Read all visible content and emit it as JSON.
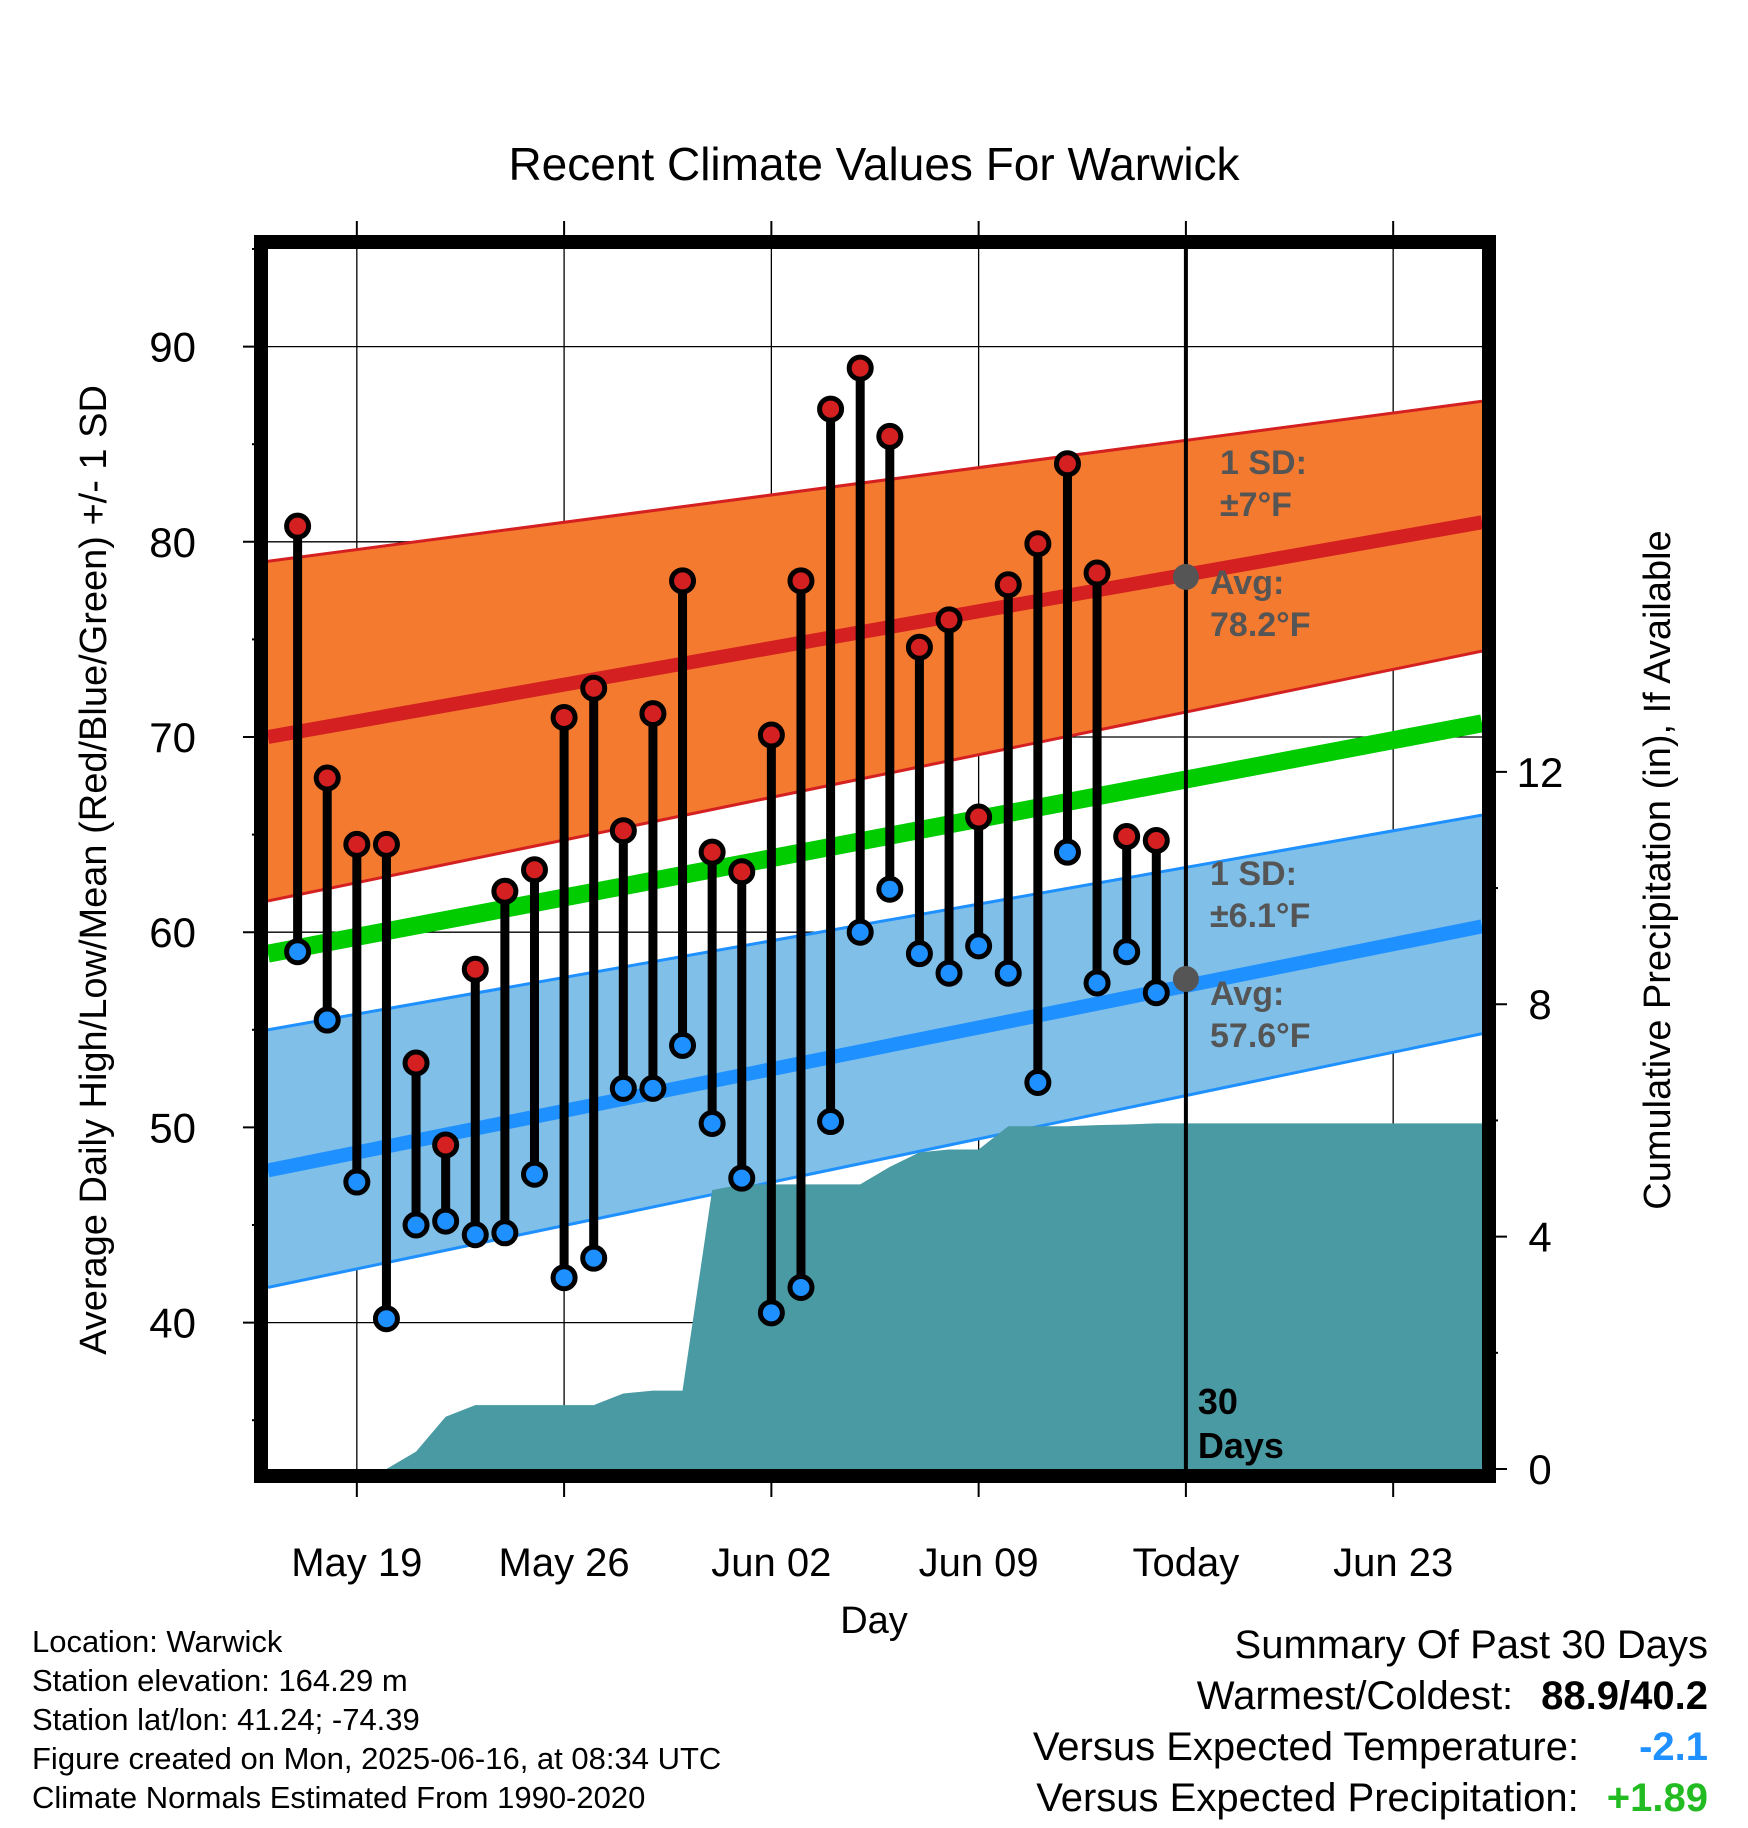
{
  "chart_data": {
    "type": "line",
    "title": "Recent Climate Values For Warwick",
    "xlabel": "Day",
    "ylabel": "Average Daily High/Low/Mean (Red/Blue/Green) +/- 1 SD",
    "y2label": "Cumulative Precipitation (in), If Available",
    "ylim": [
      32.5,
      95
    ],
    "y2lim": [
      0,
      21
    ],
    "xlim": [
      "2025-05-16",
      "2025-06-26"
    ],
    "yticks": [
      40,
      50,
      60,
      70,
      80,
      90
    ],
    "y2ticks": [
      0,
      4,
      8,
      12
    ],
    "xticks": [
      {
        "date": "2025-05-19",
        "label": "May 19"
      },
      {
        "date": "2025-05-26",
        "label": "May 26"
      },
      {
        "date": "2025-06-02",
        "label": "Jun 02"
      },
      {
        "date": "2025-06-09",
        "label": "Jun 09"
      },
      {
        "date": "2025-06-16",
        "label": "Today"
      },
      {
        "date": "2025-06-23",
        "label": "Jun 23"
      }
    ],
    "grid": true,
    "colors": {
      "high_band": "#f47a30",
      "high_line": "#d42020",
      "low_band": "#7fbfe8",
      "low_line": "#1e90ff",
      "mean_line": "#00cc00",
      "precip": "#4a9aa3",
      "high_dot": "#d42020",
      "low_dot": "#1e90ff",
      "annotation": "#555555"
    },
    "normals": {
      "dates": [
        "2025-05-16",
        "2025-06-26"
      ],
      "high_avg": [
        70.0,
        81.0
      ],
      "high_upper": [
        79.0,
        87.2
      ],
      "high_lower": [
        61.6,
        74.4
      ],
      "low_avg": [
        47.8,
        60.3
      ],
      "low_upper": [
        55.0,
        66.0
      ],
      "low_lower": [
        41.8,
        54.8
      ],
      "mean_avg": [
        58.9,
        70.7
      ]
    },
    "annotations": {
      "high_sd": [
        "1 SD:",
        "±7°F"
      ],
      "high_avg": [
        "Avg:",
        "78.2°F"
      ],
      "low_sd": [
        "1 SD:",
        "±6.1°F"
      ],
      "low_avg": [
        "Avg:",
        "57.6°F"
      ],
      "today_marker_high": 78.2,
      "today_marker_low": 57.6,
      "period": [
        "30",
        "Days"
      ]
    },
    "today": "2025-06-16",
    "series": [
      {
        "name": "High",
        "values": [
          80.8,
          67.9,
          64.5,
          64.5,
          53.3,
          49.1,
          58.1,
          62.1,
          63.2,
          71.0,
          72.5,
          65.2,
          71.2,
          78.0,
          64.1,
          63.1,
          70.1,
          78.0,
          86.8,
          88.9,
          85.4,
          74.6,
          76.0,
          65.9,
          77.8,
          79.9,
          84.0,
          78.4,
          64.9,
          64.7
        ]
      },
      {
        "name": "Low",
        "values": [
          59.0,
          55.5,
          47.2,
          40.2,
          45.0,
          45.2,
          44.5,
          44.6,
          47.6,
          42.3,
          43.3,
          52.0,
          52.0,
          54.2,
          50.2,
          47.4,
          40.5,
          41.8,
          50.3,
          60.0,
          62.2,
          58.9,
          57.9,
          59.3,
          57.9,
          52.3,
          64.1,
          57.4,
          59.0,
          56.9
        ]
      }
    ],
    "dates": [
      "2025-05-17",
      "2025-05-18",
      "2025-05-19",
      "2025-05-20",
      "2025-05-21",
      "2025-05-22",
      "2025-05-23",
      "2025-05-24",
      "2025-05-25",
      "2025-05-26",
      "2025-05-27",
      "2025-05-28",
      "2025-05-29",
      "2025-05-30",
      "2025-05-31",
      "2025-06-01",
      "2025-06-02",
      "2025-06-03",
      "2025-06-04",
      "2025-06-05",
      "2025-06-06",
      "2025-06-07",
      "2025-06-08",
      "2025-06-09",
      "2025-06-10",
      "2025-06-11",
      "2025-06-12",
      "2025-06-13",
      "2025-06-14",
      "2025-06-15"
    ],
    "precip": {
      "dates": [
        "2025-05-17",
        "2025-05-18",
        "2025-05-19",
        "2025-05-20",
        "2025-05-21",
        "2025-05-22",
        "2025-05-23",
        "2025-05-24",
        "2025-05-25",
        "2025-05-26",
        "2025-05-27",
        "2025-05-28",
        "2025-05-29",
        "2025-05-30",
        "2025-05-31",
        "2025-06-01",
        "2025-06-02",
        "2025-06-03",
        "2025-06-04",
        "2025-06-05",
        "2025-06-06",
        "2025-06-07",
        "2025-06-08",
        "2025-06-09",
        "2025-06-10",
        "2025-06-11",
        "2025-06-12",
        "2025-06-13",
        "2025-06-14",
        "2025-06-15",
        "2025-06-16",
        "2025-06-26"
      ],
      "values": [
        0,
        0,
        0,
        0,
        0.3,
        0.9,
        1.1,
        1.1,
        1.1,
        1.1,
        1.1,
        1.3,
        1.35,
        1.35,
        4.8,
        4.9,
        4.9,
        4.9,
        4.9,
        4.9,
        5.2,
        5.45,
        5.5,
        5.5,
        5.9,
        5.9,
        5.9,
        5.92,
        5.93,
        5.95,
        5.95,
        5.95
      ]
    }
  },
  "info": {
    "location": "Location: Warwick",
    "elevation": "Station elevation: 164.29 m",
    "latlon": "Station lat/lon: 41.24; -74.39",
    "created": "Figure created on Mon, 2025-06-16, at 08:34 UTC",
    "normals": "Climate Normals Estimated From 1990-2020"
  },
  "summary": {
    "title": "Summary Of Past 30 Days",
    "warm_cold_label": "Warmest/Coldest:",
    "warm_cold_value": "88.9/40.2",
    "temp_label": "Versus Expected Temperature:",
    "temp_value": "-2.1",
    "temp_color": "#1e90ff",
    "precip_label": "Versus Expected Precipitation:",
    "precip_value": "+1.89",
    "precip_color": "#22bb22"
  }
}
